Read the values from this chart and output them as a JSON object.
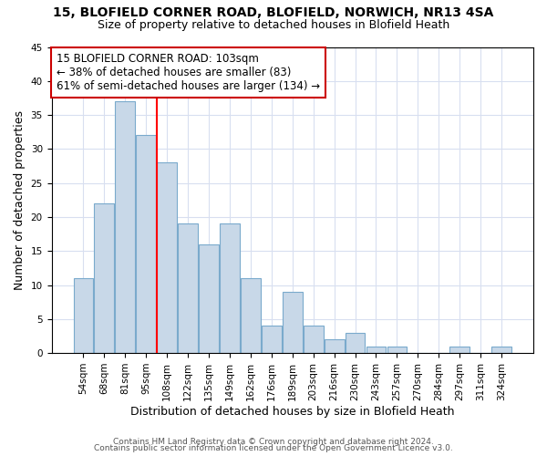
{
  "title1": "15, BLOFIELD CORNER ROAD, BLOFIELD, NORWICH, NR13 4SA",
  "title2": "Size of property relative to detached houses in Blofield Heath",
  "xlabel": "Distribution of detached houses by size in Blofield Heath",
  "ylabel": "Number of detached properties",
  "footer1": "Contains HM Land Registry data © Crown copyright and database right 2024.",
  "footer2": "Contains public sector information licensed under the Open Government Licence v3.0.",
  "bar_labels": [
    "54sqm",
    "68sqm",
    "81sqm",
    "95sqm",
    "108sqm",
    "122sqm",
    "135sqm",
    "149sqm",
    "162sqm",
    "176sqm",
    "189sqm",
    "203sqm",
    "216sqm",
    "230sqm",
    "243sqm",
    "257sqm",
    "270sqm",
    "284sqm",
    "297sqm",
    "311sqm",
    "324sqm"
  ],
  "bar_values": [
    11,
    22,
    37,
    32,
    28,
    19,
    16,
    19,
    11,
    4,
    9,
    4,
    2,
    3,
    1,
    1,
    0,
    0,
    1,
    0,
    1
  ],
  "bar_color": "#c8d8e8",
  "bar_edge_color": "#7aaacc",
  "property_line_x_label": "108sqm",
  "property_line_color": "red",
  "annotation_text": "15 BLOFIELD CORNER ROAD: 103sqm\n← 38% of detached houses are smaller (83)\n61% of semi-detached houses are larger (134) →",
  "annotation_box_color": "white",
  "annotation_box_edge_color": "#cc0000",
  "ylim": [
    0,
    45
  ],
  "yticks": [
    0,
    5,
    10,
    15,
    20,
    25,
    30,
    35,
    40,
    45
  ],
  "grid_color": "#d8dff0",
  "background_color": "white",
  "title1_fontsize": 10,
  "title2_fontsize": 9,
  "xlabel_fontsize": 9,
  "ylabel_fontsize": 9,
  "annotation_fontsize": 8.5,
  "tick_fontsize": 7.5,
  "footer_fontsize": 6.5
}
